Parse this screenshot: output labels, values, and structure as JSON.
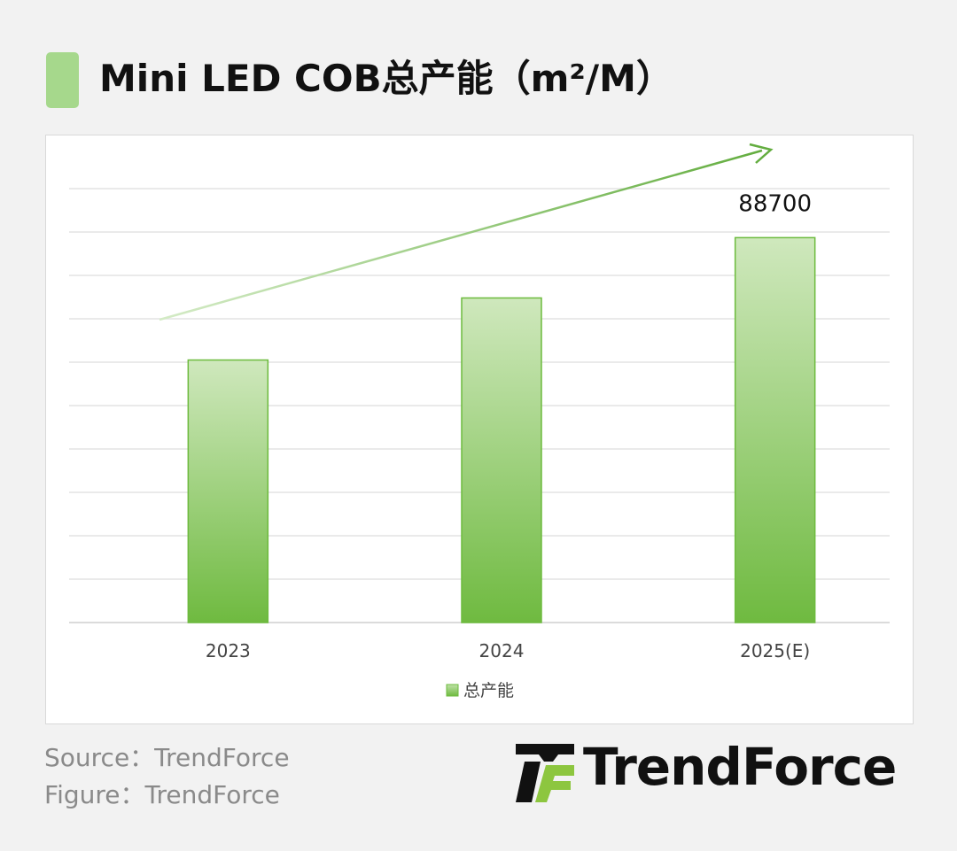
{
  "header": {
    "title": "Mini LED COB总产能（m²/M）"
  },
  "chart_data": {
    "type": "bar",
    "categories": [
      "2023",
      "2024",
      "2025(E)"
    ],
    "series": [
      {
        "name": "总产能",
        "values": [
          60500,
          74800,
          88700
        ]
      }
    ],
    "data_labels": [
      null,
      null,
      "88700"
    ],
    "ylim": [
      0,
      100000
    ],
    "grid": true,
    "legend": "bottom",
    "trend_arrow": true,
    "colors": {
      "bar_top": "#cfe8bd",
      "bar_bottom": "#6fba40",
      "bar_border": "#6dbb3e",
      "arrow": "#63ad3f"
    }
  },
  "footer": {
    "source": "Source：TrendForce",
    "figure": "Figure：TrendForce",
    "logo_text": "TrendForce",
    "logo_icon": "trendforce-logo-icon"
  }
}
